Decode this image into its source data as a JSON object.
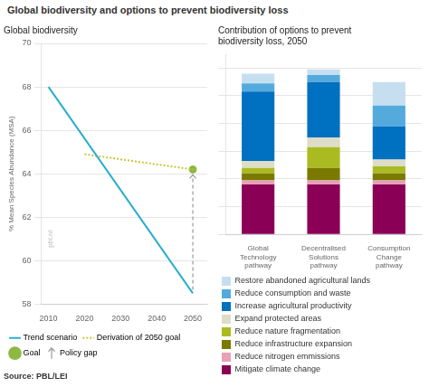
{
  "title": "Global biodiversity and options to prevent biodiversity loss",
  "chart_data": [
    {
      "type": "line",
      "title": "Global biodiversity",
      "ylabel": "% Mean Species Abundance (MSA)",
      "series": [
        {
          "name": "Trend scenario",
          "x": [
            2010,
            2050
          ],
          "values": [
            68.0,
            58.5
          ],
          "color": "#2aaece",
          "line_style": "solid"
        },
        {
          "name": "Derivation of 2050 goal",
          "x": [
            2020,
            2050
          ],
          "values": [
            64.9,
            64.2
          ],
          "color": "#c8c832",
          "line_style": "dotted"
        },
        {
          "name": "Goal",
          "type": "scatter",
          "x": [
            2050
          ],
          "values": [
            64.2
          ],
          "color": "#8db843",
          "marker": "circle"
        }
      ],
      "xlim": [
        2008,
        2054
      ],
      "xticks": [
        2010,
        2020,
        2030,
        2040,
        2050
      ],
      "ylim": [
        58,
        70
      ],
      "yticks": [
        58,
        60,
        62,
        64,
        66,
        68,
        70
      ],
      "grid": "y",
      "legend": "bottom",
      "annotations": [
        {
          "type": "arrow",
          "text": "Policy gap",
          "x": 2050,
          "from": 58.5,
          "to": 64.2,
          "color": "#999999"
        },
        {
          "type": "watermark",
          "text": "pbl.nl"
        },
        {
          "type": "note",
          "text": "Source: PBL/LEI"
        }
      ]
    },
    {
      "type": "bar",
      "title": "Contribution of options to prevent\nbiodiversity loss, 2050",
      "stacked": true,
      "categories": [
        "Global\nTechnology\npathway",
        "Decentralised\nSolutions\npathway",
        "Consumption\nChange\npathway"
      ],
      "series": [
        {
          "name": "Mitigate climate change",
          "values": [
            1.8,
            1.8,
            1.8
          ],
          "color": "#8b0057"
        },
        {
          "name": "Reduce nitrogen emmissions",
          "values": [
            0.15,
            0.15,
            0.15
          ],
          "color": "#e8a0b8"
        },
        {
          "name": "Reduce infrastructure expansion",
          "values": [
            0.25,
            0.45,
            0.25
          ],
          "color": "#7a7a00"
        },
        {
          "name": "Reduce nature fragmentation",
          "values": [
            0.2,
            0.75,
            0.25
          ],
          "color": "#aabb22"
        },
        {
          "name": "Expand protected areas",
          "values": [
            0.25,
            0.35,
            0.25
          ],
          "color": "#ddddc8"
        },
        {
          "name": "Increase agricultural productivity",
          "values": [
            2.5,
            2.0,
            1.2
          ],
          "color": "#0070c0"
        },
        {
          "name": "Reduce consumption and waste",
          "values": [
            0.3,
            0.25,
            0.75
          ],
          "color": "#55aadd"
        },
        {
          "name": "Restore abandoned agricultural lands",
          "values": [
            0.35,
            0.2,
            0.85
          ],
          "color": "#c5dff0"
        }
      ],
      "ylim": [
        0,
        6.5
      ],
      "yticks": [
        0,
        1,
        2,
        3,
        4,
        5,
        6
      ],
      "grid": "y",
      "tick_labels": "x",
      "legend": "bottom"
    }
  ]
}
